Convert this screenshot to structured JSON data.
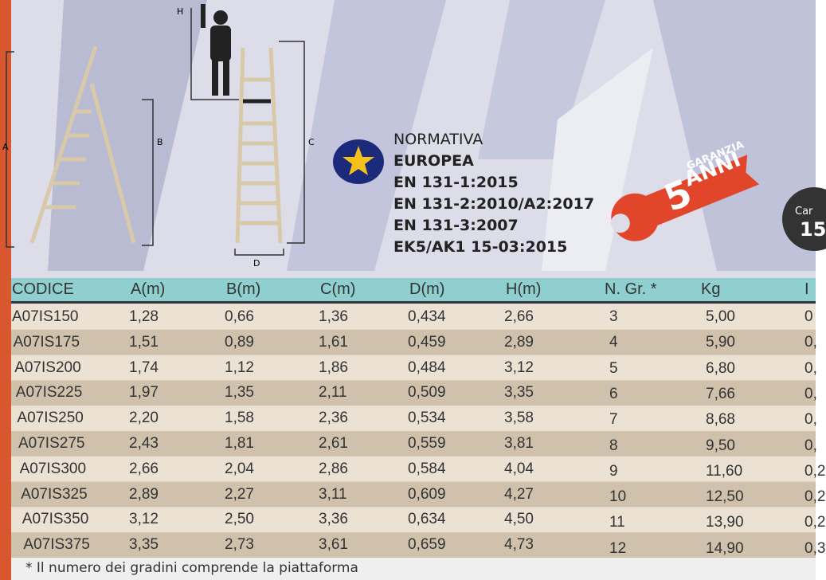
{
  "diagram": {
    "labels": [
      "H",
      "A",
      "B",
      "C",
      "D"
    ]
  },
  "normativa": {
    "heading": "NORMATIVA",
    "lines": [
      "EUROPEA",
      "EN 131-1:2015",
      "EN 131-2:2010/A2:2017",
      "EN 131-3:2007",
      "EK5/AK1 15-03:2015"
    ]
  },
  "warranty": {
    "number": "5",
    "top": "GARANZIA",
    "bottom": "ANNI"
  },
  "badge": {
    "text": "Car",
    "number": "15"
  },
  "table": {
    "headers": [
      "CODICE",
      "A(m)",
      "B(m)",
      "C(m)",
      "D(m)",
      "H(m)",
      "N. Gr. *",
      "Kg",
      "I"
    ],
    "rows": [
      [
        "A07IS150",
        "1,28",
        "0,66",
        "1,36",
        "0,434",
        "2,66",
        "3",
        "5,00",
        "0"
      ],
      [
        "A07IS175",
        "1,51",
        "0,89",
        "1,61",
        "0,459",
        "2,89",
        "4",
        "5,90",
        "0,"
      ],
      [
        "A07IS200",
        "1,74",
        "1,12",
        "1,86",
        "0,484",
        "3,12",
        "5",
        "6,80",
        "0,"
      ],
      [
        "A07IS225",
        "1,97",
        "1,35",
        "2,11",
        "0,509",
        "3,35",
        "6",
        "7,66",
        "0,"
      ],
      [
        "A07IS250",
        "2,20",
        "1,58",
        "2,36",
        "0,534",
        "3,58",
        "7",
        "8,68",
        "0,"
      ],
      [
        "A07IS275",
        "2,43",
        "1,81",
        "2,61",
        "0,559",
        "3,81",
        "8",
        "9,50",
        "0,"
      ],
      [
        "A07IS300",
        "2,66",
        "2,04",
        "2,86",
        "0,584",
        "4,04",
        "9",
        "11,60",
        "0,2"
      ],
      [
        "A07IS325",
        "2,89",
        "2,27",
        "3,11",
        "0,609",
        "4,27",
        "10",
        "12,50",
        "0,2"
      ],
      [
        "A07IS350",
        "3,12",
        "2,50",
        "3,36",
        "0,634",
        "4,50",
        "11",
        "13,90",
        "0,2"
      ],
      [
        "A07IS375",
        "3,35",
        "2,73",
        "3,61",
        "0,659",
        "4,73",
        "12",
        "14,90",
        "0,3"
      ]
    ]
  },
  "footnote": "* Il numero dei gradini comprende la piattaforma"
}
